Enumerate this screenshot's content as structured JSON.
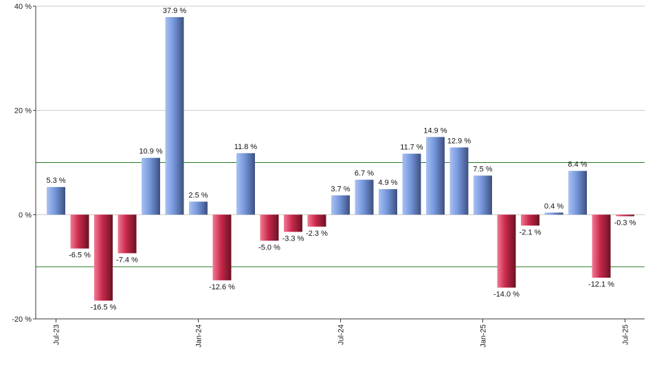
{
  "chart_data": {
    "type": "bar",
    "title": "",
    "xlabel": "",
    "ylabel": "",
    "ylim": [
      -20,
      40
    ],
    "y_ticks": [
      -20,
      0,
      20,
      40
    ],
    "y_tick_labels": [
      "-20 %",
      "0 %",
      "20 %",
      "40 %"
    ],
    "reference_lines": [
      10,
      -10
    ],
    "x_tick_labels": [
      "Jul-23",
      "Jan-24",
      "Jul-24",
      "Jan-25",
      "Jul-25"
    ],
    "x_tick_indices": [
      0,
      6,
      12,
      18,
      24
    ],
    "categories": [
      "Jul-23",
      "Aug-23",
      "Sep-23",
      "Oct-23",
      "Nov-23",
      "Dec-23",
      "Jan-24",
      "Feb-24",
      "Mar-24",
      "Apr-24",
      "May-24",
      "Jun-24",
      "Jul-24",
      "Aug-24",
      "Sep-24",
      "Oct-24",
      "Nov-24",
      "Dec-24",
      "Jan-25",
      "Feb-25",
      "Mar-25",
      "Apr-25",
      "May-25",
      "Jun-25",
      "Jul-25"
    ],
    "values": [
      5.3,
      -6.5,
      -16.5,
      -7.4,
      10.9,
      37.9,
      2.5,
      -12.6,
      11.8,
      -5.0,
      -3.3,
      -2.3,
      3.7,
      6.7,
      4.9,
      11.7,
      14.9,
      12.9,
      7.5,
      -14.0,
      -2.1,
      0.4,
      8.4,
      -12.1,
      -0.3
    ],
    "value_labels": [
      "5.3 %",
      "-6.5 %",
      "-16.5 %",
      "-7.4 %",
      "10.9 %",
      "37.9 %",
      "2.5 %",
      "-12.6 %",
      "11.8 %",
      "-5.0 %",
      "-3.3 %",
      "-2.3 %",
      "3.7 %",
      "6.7 %",
      "4.9 %",
      "11.7 %",
      "14.9 %",
      "12.9 %",
      "7.5 %",
      "-14.0 %",
      "-2.1 %",
      "0.4 %",
      "8.4 %",
      "-12.1 %",
      "-0.3 %"
    ],
    "grid": true,
    "legend": "none",
    "colors": {
      "positive": "#6f8fd8",
      "negative": "#c8284a",
      "reference_line": "#1f7a1f",
      "grid": "#c8c8c8",
      "axis": "#333333"
    }
  }
}
